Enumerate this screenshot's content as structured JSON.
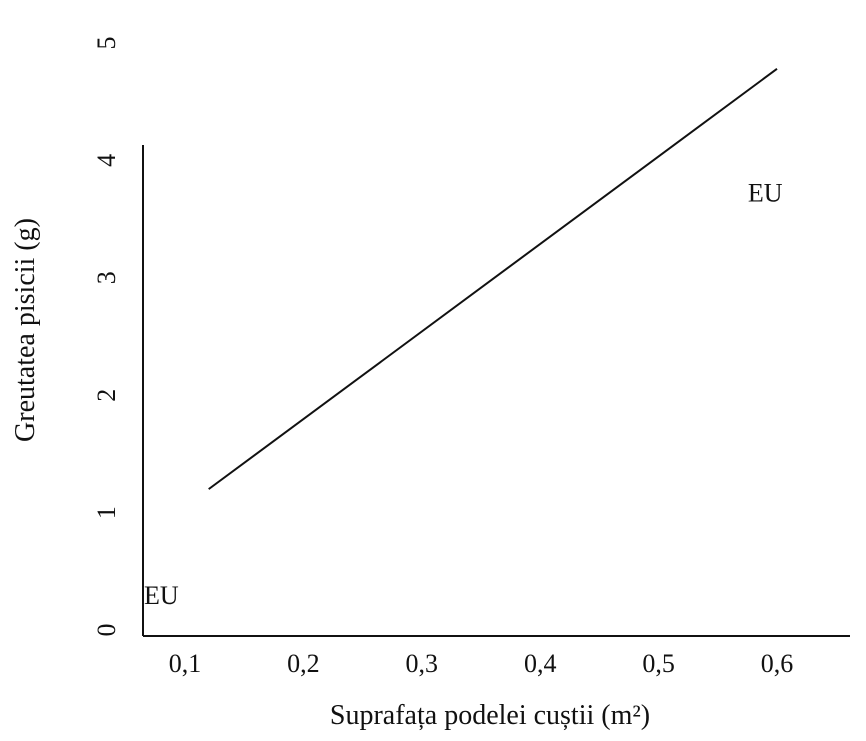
{
  "chart_data": {
    "type": "line",
    "title": "",
    "xlabel": "Suprafața podelei cuștii (m²)",
    "ylabel": "Greutatea pisicii (g)",
    "xlim": [
      0.05,
      0.62
    ],
    "ylim": [
      0,
      5
    ],
    "x_ticks": [
      {
        "value": 0.1,
        "label": "0,1"
      },
      {
        "value": 0.2,
        "label": "0,2"
      },
      {
        "value": 0.3,
        "label": "0,3"
      },
      {
        "value": 0.4,
        "label": "0,4"
      },
      {
        "value": 0.5,
        "label": "0,5"
      },
      {
        "value": 0.6,
        "label": "0,6"
      }
    ],
    "y_ticks": [
      {
        "value": 0,
        "label": "0"
      },
      {
        "value": 1,
        "label": "1"
      },
      {
        "value": 2,
        "label": "2"
      },
      {
        "value": 3,
        "label": "3"
      },
      {
        "value": 4,
        "label": "4"
      },
      {
        "value": 5,
        "label": "5"
      }
    ],
    "series": [
      {
        "x": [
          0.12,
          0.6
        ],
        "y": [
          1.2,
          4.78
        ],
        "color": "#111111"
      }
    ],
    "annotations": [
      {
        "text": "EU",
        "x": 0.59,
        "y": 3.65
      },
      {
        "text": "EU",
        "x": 0.08,
        "y": 0.22
      }
    ],
    "grid": false,
    "legend": "none"
  }
}
